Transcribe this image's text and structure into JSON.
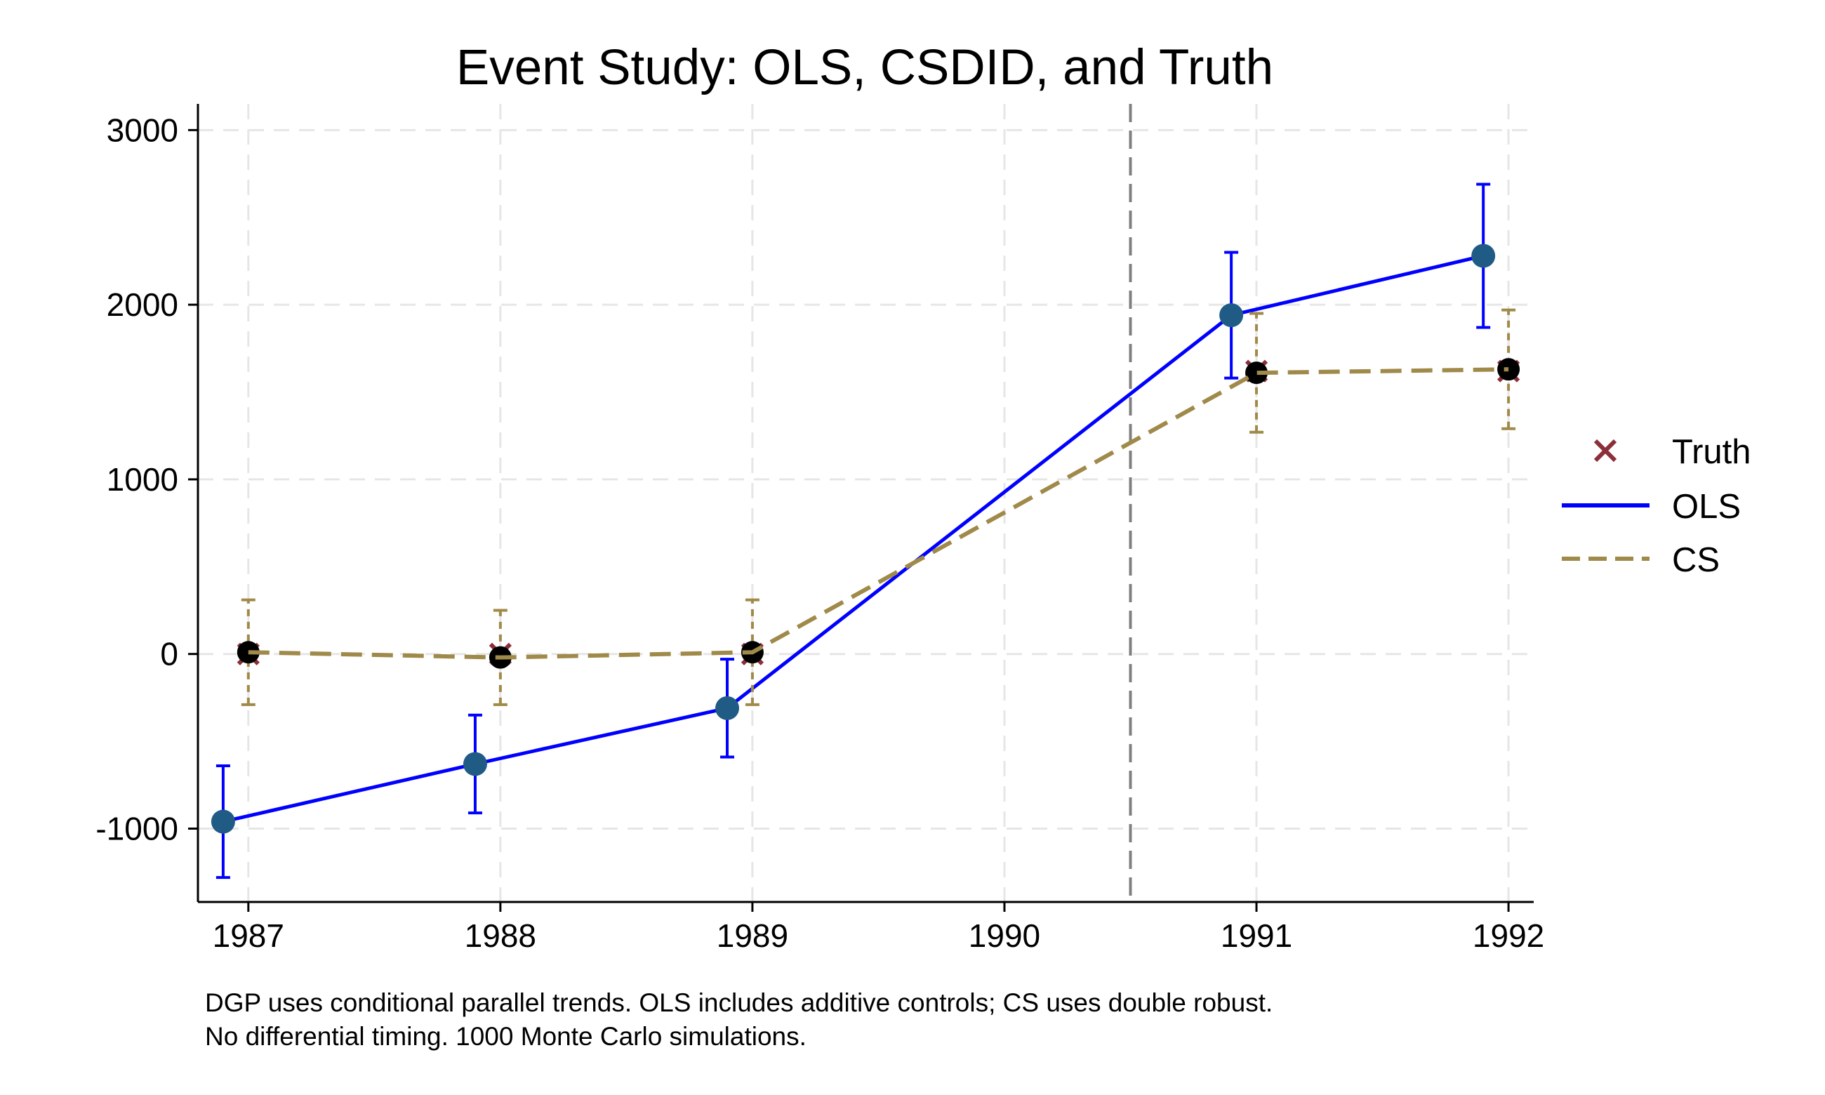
{
  "chart_data": {
    "type": "line",
    "title": "Event Study: OLS, CSDID, and Truth",
    "xlabel": "",
    "ylabel": "",
    "x": [
      1987,
      1988,
      1989,
      1990,
      1991,
      1992
    ],
    "x_tick_labels": [
      "1987",
      "1988",
      "1989",
      "1990",
      "1991",
      "1992"
    ],
    "xlim": [
      1986.8,
      1992.1
    ],
    "ylim": [
      -1420,
      3150
    ],
    "y_ticks": [
      -1000,
      0,
      1000,
      2000,
      3000
    ],
    "y_tick_labels": [
      "-1000",
      "0",
      "1000",
      "2000",
      "3000"
    ],
    "grid": true,
    "reference_line_x": 1990.5,
    "legend_position": "right",
    "series": [
      {
        "name": "Truth",
        "kind": "marker-x",
        "color": "#8b2f3a",
        "x": [
          1987,
          1988,
          1989,
          1991,
          1992
        ],
        "values": [
          0,
          0,
          0,
          1620,
          1620
        ]
      },
      {
        "name": "OLS",
        "kind": "solid-line",
        "color": "#0000ff",
        "marker_color": "#1f5b85",
        "x": [
          1986.9,
          1987.9,
          1988.9,
          1990.9,
          1991.9
        ],
        "values": [
          -960,
          -630,
          -310,
          1940,
          2280
        ],
        "ci_low": [
          -1280,
          -910,
          -590,
          1580,
          1870
        ],
        "ci_high": [
          -640,
          -350,
          -30,
          2300,
          2690
        ]
      },
      {
        "name": "CS",
        "kind": "dashed-line",
        "color": "#a08a4a",
        "marker_color": "#000000",
        "x": [
          1987,
          1988,
          1989,
          1991,
          1992
        ],
        "values": [
          10,
          -20,
          10,
          1610,
          1630
        ],
        "ci_low": [
          -290,
          -290,
          -290,
          1270,
          1290
        ],
        "ci_high": [
          310,
          250,
          310,
          1950,
          1970
        ]
      }
    ]
  },
  "note": {
    "line1": "DGP uses conditional parallel trends. OLS includes additive controls; CS uses double robust.",
    "line2": "No differential timing. 1000 Monte Carlo simulations."
  }
}
